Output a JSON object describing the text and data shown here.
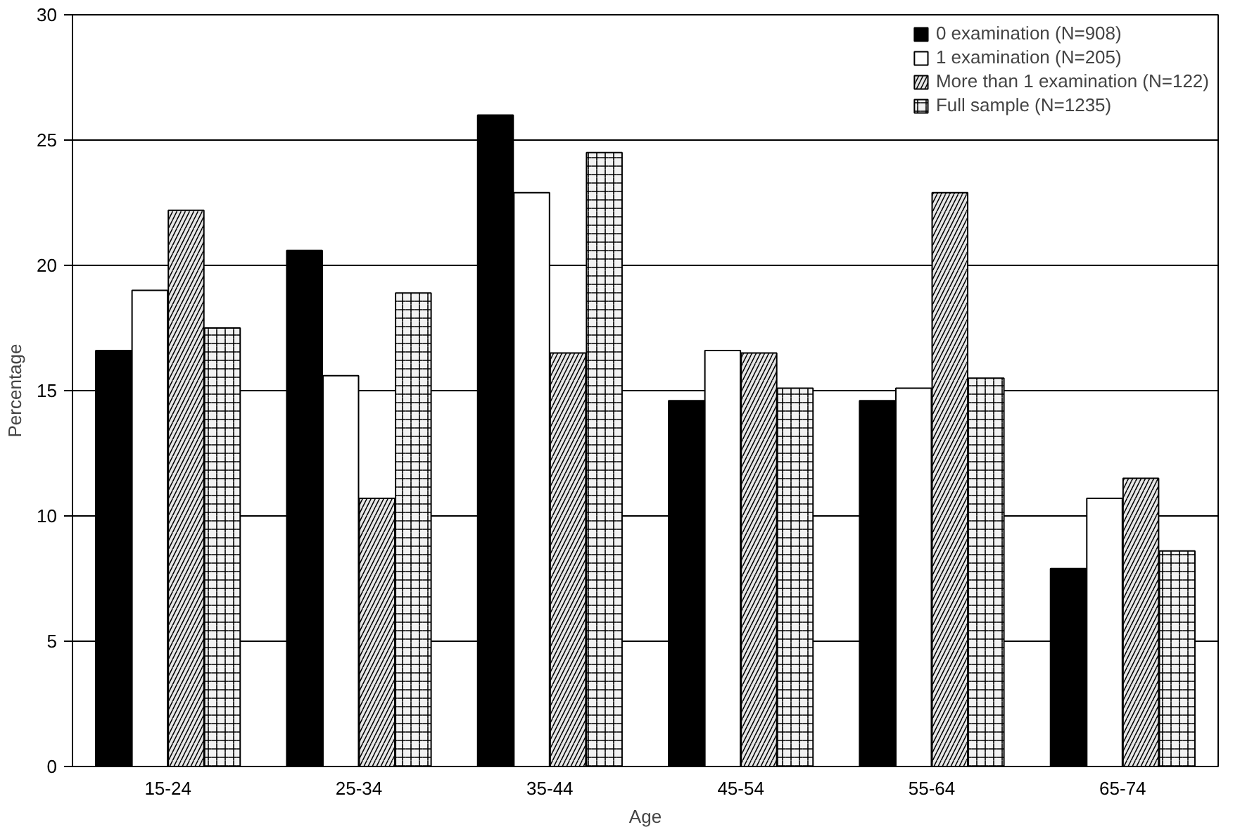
{
  "chart_data": {
    "type": "bar",
    "xlabel": "Age",
    "ylabel": "Percentage",
    "categories": [
      "15-24",
      "25-34",
      "35-44",
      "45-54",
      "55-64",
      "65-74"
    ],
    "series": [
      {
        "name": "0 examination (N=908)",
        "color": "#000000",
        "values": [
          16.6,
          20.6,
          26.0,
          14.6,
          14.6,
          7.9
        ]
      },
      {
        "name": "1 examination (N=205)",
        "color": "#ffffff",
        "values": [
          19.0,
          15.6,
          22.9,
          16.6,
          15.1,
          10.7
        ]
      },
      {
        "name": "More than 1 examination (N=122)",
        "color": "#e6e6e6",
        "values": [
          22.2,
          10.7,
          16.5,
          16.5,
          22.9,
          11.5
        ]
      },
      {
        "name": "Full sample (N=1235)",
        "color": "#f2f2f2",
        "values": [
          17.5,
          18.9,
          24.5,
          15.1,
          15.5,
          8.6
        ]
      }
    ],
    "ylim": [
      0,
      30
    ],
    "yticks": [
      0,
      5,
      10,
      15,
      20,
      25,
      30
    ],
    "grid": "y",
    "legend": "top right"
  }
}
